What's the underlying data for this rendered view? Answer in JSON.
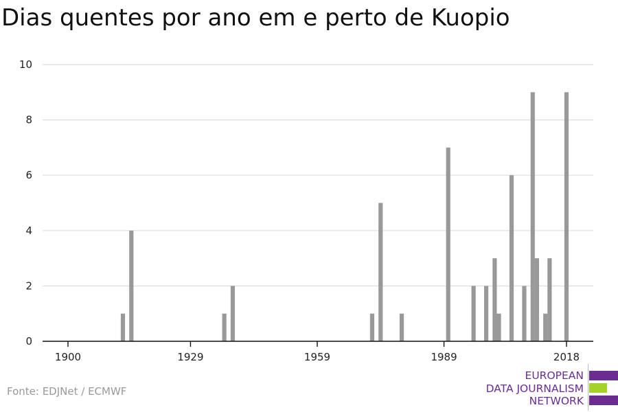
{
  "title": "Dias quentes por ano em e perto de Kuopio",
  "source": "Fonte: EDJNet / ECMWF",
  "logo": {
    "lines": [
      "EUROPEAN",
      "DATA JOURNALISM",
      "NETWORK"
    ],
    "colors": {
      "purple": "#6a2c91",
      "green": "#a4d12a"
    }
  },
  "chart_data": {
    "type": "bar",
    "title": "Dias quentes por ano em e perto de Kuopio",
    "xlabel": "",
    "ylabel": "",
    "xlim": [
      1900,
      2020
    ],
    "ylim": [
      0,
      10
    ],
    "x_ticks": [
      1900,
      1929,
      1959,
      1989,
      2018
    ],
    "y_ticks": [
      0,
      2,
      4,
      6,
      8,
      10
    ],
    "grid": true,
    "bar_color": "#999999",
    "points": [
      {
        "year": 1913,
        "value": 1
      },
      {
        "year": 1915,
        "value": 4
      },
      {
        "year": 1937,
        "value": 1
      },
      {
        "year": 1939,
        "value": 2
      },
      {
        "year": 1972,
        "value": 1
      },
      {
        "year": 1974,
        "value": 5
      },
      {
        "year": 1979,
        "value": 1
      },
      {
        "year": 1990,
        "value": 7
      },
      {
        "year": 1996,
        "value": 2
      },
      {
        "year": 1999,
        "value": 2
      },
      {
        "year": 2001,
        "value": 3
      },
      {
        "year": 2002,
        "value": 1
      },
      {
        "year": 2005,
        "value": 6
      },
      {
        "year": 2008,
        "value": 2
      },
      {
        "year": 2010,
        "value": 9
      },
      {
        "year": 2011,
        "value": 3
      },
      {
        "year": 2013,
        "value": 1
      },
      {
        "year": 2014,
        "value": 3
      },
      {
        "year": 2018,
        "value": 9
      }
    ]
  }
}
